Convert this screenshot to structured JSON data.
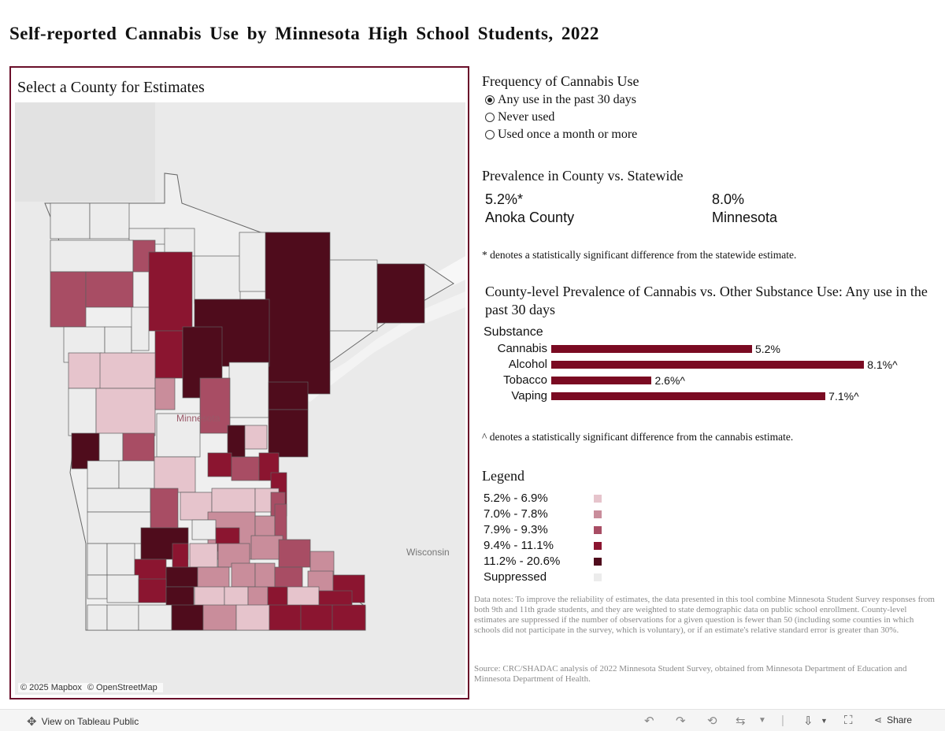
{
  "title": "Self-reported Cannabis Use by Minnesota High School Students, 2022",
  "map": {
    "title": "Select a County for Estimates",
    "state_label": "Minnesota",
    "neighbor_label": "Wisconsin",
    "credits": [
      "© 2025 Mapbox",
      "© OpenStreetMap"
    ]
  },
  "frequency": {
    "title": "Frequency of Cannabis Use",
    "options": [
      "Any use in the past 30 days",
      "Never used",
      "Used once a month or more"
    ],
    "selected": 0
  },
  "prevalence": {
    "title": "Prevalence in County vs. Statewide",
    "county_value": "5.2%*",
    "county_name": "Anoka County",
    "state_value": "8.0%",
    "state_name": "Minnesota",
    "note": "* denotes a statistically significant difference from the statewide estimate."
  },
  "chart_data": {
    "type": "bar",
    "title": "County-level Prevalence of Cannabis vs. Other Substance Use: Any use in the past 30 days",
    "header": "Substance",
    "categories": [
      "Cannabis",
      "Alcohol",
      "Tobacco",
      "Vaping"
    ],
    "values": [
      5.2,
      8.1,
      2.6,
      7.1
    ],
    "labels": [
      "5.2%",
      "8.1%^",
      "2.6%^",
      "7.1%^"
    ],
    "xlim": [
      0,
      8.3
    ],
    "color": "#7a0a22",
    "note": "^ denotes a statistically significant difference from the cannabis estimate."
  },
  "legend": {
    "title": "Legend",
    "items": [
      {
        "label": "5.2% - 6.9%",
        "color": "#e6c4cc"
      },
      {
        "label": "7.0% - 7.8%",
        "color": "#c98d9b"
      },
      {
        "label": "7.9% - 9.3%",
        "color": "#a84d64"
      },
      {
        "label": "9.4% - 11.1%",
        "color": "#8b1530"
      },
      {
        "label": "11.2% - 20.6%",
        "color": "#4f0c1c"
      },
      {
        "label": "Suppressed",
        "color": "#ececec"
      }
    ]
  },
  "data_notes": "Data notes: To improve the reliability of estimates, the data presented in this tool combine Minnesota Student Survey responses from both 9th and 11th grade students, and they are weighted to state demographic data on public school enrollment. County-level estimates are suppressed if the number of observations for a given question is fewer than 50 (including some counties in which schools did not participate in the survey, which is voluntary), or if an estimate's relative standard error is greater than 30%.",
  "source": "Source: CRC/SHADAC analysis of 2022 Minnesota Student Survey, obtained from Minnesota Department of Education and Minnesota Department of Health.",
  "footer": {
    "view_label": "View on Tableau Public",
    "share_label": "Share"
  }
}
